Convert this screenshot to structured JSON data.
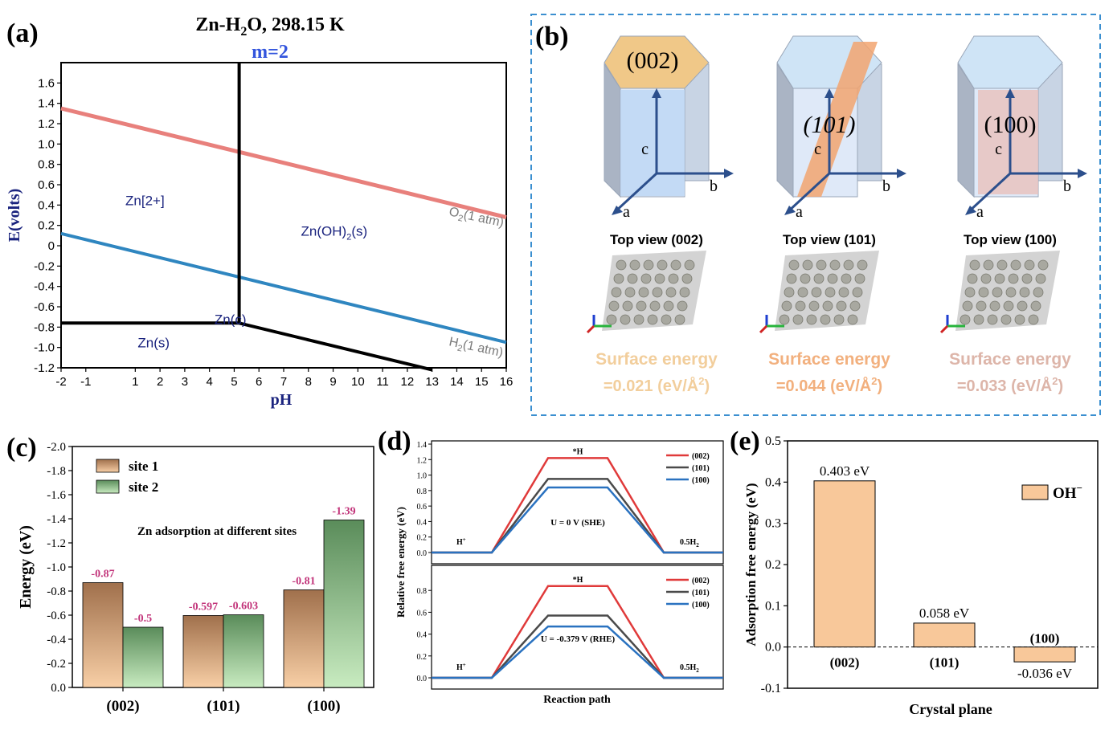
{
  "panel_labels": {
    "a": "(a)",
    "b": "(b)",
    "c": "(c)",
    "d": "(d)",
    "e": "(e)"
  },
  "colors": {
    "o2_line": "#e8807c",
    "h2_line": "#2f86c0",
    "pourbaix_black": "#000000",
    "m_label": "#3355dd",
    "axis_label_blue": "#1a237e",
    "site1_top": "#a0704c",
    "site1_bottom": "#f8cfa6",
    "site2_top": "#5a8c5a",
    "site2_bottom": "#c8ebc0",
    "value_pink": "#c2347a",
    "d_002": "#e03a3a",
    "d_101": "#4a4a4a",
    "d_100": "#2a72c0",
    "e_bar": "#f8c89a",
    "dash_border": "#3b8fd0",
    "se_002": "#f2ce9c",
    "se_101": "#f2b07e",
    "se_100": "#ddb5a9"
  },
  "chart_data": [
    {
      "panel": "a",
      "type": "line",
      "title": "Zn-H2O, 298.15 K",
      "title_main": "Zn-H",
      "title_sub": "2",
      "title_rest": "O, 298.15 K",
      "subtitle": "m=2",
      "xlabel": "pH",
      "ylabel": "E(volts)",
      "xlim": [
        -2,
        16
      ],
      "ylim": [
        -1.2,
        1.8
      ],
      "x_ticks": [
        -2,
        -1,
        1,
        2,
        3,
        4,
        5,
        6,
        7,
        8,
        9,
        10,
        11,
        12,
        13,
        14,
        15,
        16
      ],
      "y_ticks": [
        -1.2,
        -1.0,
        -0.8,
        -0.6,
        -0.4,
        -0.2,
        0,
        0.2,
        0.4,
        0.6,
        0.8,
        1.0,
        1.2,
        1.4,
        1.6
      ],
      "series": [
        {
          "name": "O2(1 atm)",
          "x": [
            -2,
            16
          ],
          "y": [
            1.35,
            0.28
          ]
        },
        {
          "name": "H2(1 atm)",
          "x": [
            -2,
            16
          ],
          "y": [
            0.12,
            -0.95
          ]
        },
        {
          "x": [
            -2,
            5.2
          ],
          "y": [
            -0.76,
            -0.76
          ]
        },
        {
          "x": [
            5.2,
            5.2
          ],
          "y": [
            -0.76,
            1.8
          ]
        },
        {
          "x": [
            5.2,
            13
          ],
          "y": [
            -0.76,
            -1.22
          ]
        }
      ],
      "regions": [
        {
          "label": "Zn[2+]",
          "x": 0.6,
          "y": 0.4
        },
        {
          "label_main": "Zn(OH)",
          "label_sub": "2",
          "label_rest": "(s)",
          "x": 7.7,
          "y": 0.1
        },
        {
          "label": "Zn(s)",
          "x": 1.1,
          "y": -1.0
        },
        {
          "label": "Zn(c)",
          "x": 4.2,
          "y": -0.77
        }
      ],
      "line_labels": [
        {
          "main": "O",
          "sub": "2",
          "rest": "(1 atm)"
        },
        {
          "main": "H",
          "sub": "2",
          "rest": "(1 atm)"
        }
      ]
    },
    {
      "panel": "c",
      "type": "bar",
      "categories": [
        "(002)",
        "(101)",
        "(100)"
      ],
      "series": [
        {
          "name": "site 1",
          "values": [
            -0.87,
            -0.597,
            -0.81
          ]
        },
        {
          "name": "site 2",
          "values": [
            -0.5,
            -0.603,
            -1.39
          ]
        }
      ],
      "value_labels": [
        [
          "-0.87",
          "-0.597",
          "-0.81"
        ],
        [
          "-0.5",
          "-0.603",
          "-1.39"
        ]
      ],
      "ylabel": "Energy (eV)",
      "ylim": [
        0,
        -2.0
      ],
      "inverted_y": true,
      "y_ticks": [
        "0.0",
        "-0.2",
        "-0.4",
        "-0.6",
        "-0.8",
        "-1.0",
        "-1.2",
        "-1.4",
        "-1.6",
        "-1.8",
        "-2.0"
      ],
      "annotation": "Zn adsorption at different sites",
      "legend": "top-left"
    },
    {
      "panel": "d-top",
      "type": "line",
      "annotation": "U = 0 V (SHE)",
      "ylim": [
        0,
        1.4
      ],
      "y_ticks": [
        "0.0",
        "0.2",
        "0.4",
        "0.6",
        "0.8",
        "1.0",
        "1.2",
        "1.4"
      ],
      "state_labels": {
        "left": "H",
        "left_sup": "+",
        "middle": "*H",
        "right_main": "0.5H",
        "right_sub": "2"
      },
      "series": [
        {
          "name": "(002)",
          "values": [
            0,
            1.22,
            0
          ]
        },
        {
          "name": "(101)",
          "values": [
            0,
            0.95,
            0
          ]
        },
        {
          "name": "(100)",
          "values": [
            0,
            0.84,
            0
          ]
        }
      ],
      "legend": "top-right"
    },
    {
      "panel": "d-bottom",
      "type": "line",
      "annotation": "U = -0.379 V (RHE)",
      "ylim": [
        0,
        1.0
      ],
      "y_ticks": [
        "0.0",
        "0.2",
        "0.4",
        "0.6",
        "0.8"
      ],
      "state_labels": {
        "left": "H",
        "left_sup": "+",
        "middle": "*H",
        "right_main": "0.5H",
        "right_sub": "2"
      },
      "series": [
        {
          "name": "(002)",
          "values": [
            0,
            0.84,
            0
          ]
        },
        {
          "name": "(101)",
          "values": [
            0,
            0.57,
            0
          ]
        },
        {
          "name": "(100)",
          "values": [
            0,
            0.47,
            0
          ]
        }
      ],
      "xlabel": "Reaction path",
      "ylabel": "Relative free energy (eV)",
      "legend": "top-right"
    },
    {
      "panel": "e",
      "type": "bar",
      "categories": [
        "(002)",
        "(101)",
        "(100)"
      ],
      "values": [
        0.403,
        0.058,
        -0.036
      ],
      "value_labels": [
        "0.403 eV",
        "0.058 eV",
        "-0.036 eV"
      ],
      "series_name_main": "OH",
      "series_name_sup": "−",
      "xlabel": "Crystal plane",
      "ylabel": "Adsorption free energy (eV)",
      "ylim": [
        -0.1,
        0.5
      ],
      "y_ticks": [
        "-0.1",
        "0.0",
        "0.1",
        "0.2",
        "0.3",
        "0.4",
        "0.5"
      ],
      "legend": "right"
    }
  ],
  "panel_b": {
    "crystals": [
      {
        "label": "(002)",
        "top_view": "Top view (002)",
        "se_label": "Surface energy",
        "se_value": "=0.021 (eV/Å",
        "se_sup": "2",
        "se_close": ")"
      },
      {
        "label": "(101)",
        "top_view": "Top view (101)",
        "se_label": "Surface energy",
        "se_value": "=0.044 (eV/Å",
        "se_sup": "2",
        "se_close": ")"
      },
      {
        "label": "(100)",
        "top_view": "Top view (100)",
        "se_label": "Surface energy",
        "se_value": "=0.033 (eV/Å",
        "se_sup": "2",
        "se_close": ")"
      }
    ],
    "axis_labels": {
      "a": "a",
      "b": "b",
      "c": "c"
    }
  }
}
